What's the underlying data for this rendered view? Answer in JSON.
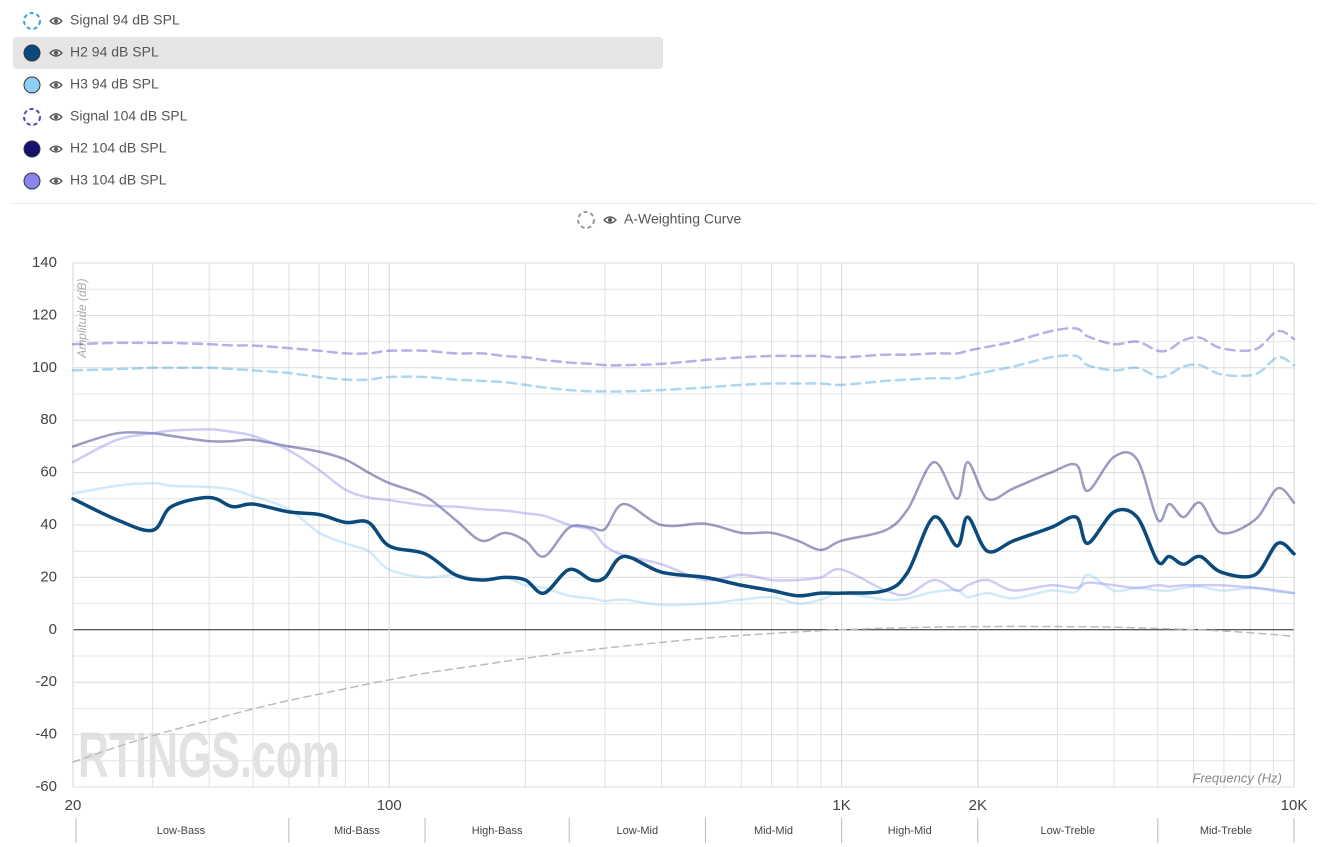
{
  "chart_data": {
    "type": "line",
    "log_x": true,
    "grid": true,
    "xlabel": "Frequency (Hz)",
    "ylabel": "Amplitude (dB)",
    "watermark": "RTINGS.com",
    "xlim": [
      20,
      10000
    ],
    "ylim": [
      -60,
      140
    ],
    "xticks": [
      20,
      100,
      {
        "value": 1000,
        "label": "1K"
      },
      {
        "value": 2000,
        "label": "2K"
      },
      {
        "value": 10000,
        "label": "10K"
      }
    ],
    "xminor": [
      30,
      40,
      50,
      60,
      70,
      80,
      90,
      200,
      300,
      400,
      500,
      600,
      700,
      800,
      900,
      3000,
      4000,
      5000,
      6000,
      7000,
      8000,
      9000
    ],
    "yticks": [
      140,
      120,
      100,
      80,
      60,
      40,
      20,
      0,
      -20,
      -40,
      -60
    ],
    "yminor": [
      130,
      110,
      90,
      70,
      50,
      30,
      10,
      -10,
      -30,
      -50
    ],
    "x": [
      20,
      25,
      30,
      33,
      40,
      45,
      50,
      60,
      70,
      80,
      90,
      100,
      120,
      140,
      160,
      180,
      200,
      220,
      250,
      280,
      300,
      330,
      400,
      500,
      600,
      700,
      800,
      900,
      1000,
      1250,
      1400,
      1600,
      1800,
      1900,
      2100,
      2400,
      2900,
      3300,
      3500,
      4000,
      4500,
      5000,
      5300,
      5700,
      6200,
      6900,
      8200,
      9200,
      10000
    ],
    "series": [
      {
        "name": "Signal 94 dB SPL",
        "color": "#3aa0dc",
        "dashed": true,
        "values": [
          99,
          99.5,
          100,
          100,
          100,
          99.5,
          99,
          98,
          96.5,
          95.5,
          95.5,
          96.5,
          96.5,
          95.5,
          95,
          94.5,
          93.5,
          92.5,
          91.5,
          91,
          91,
          91,
          91.5,
          92.5,
          93.5,
          94,
          94,
          94,
          93.5,
          95,
          95.5,
          96,
          96,
          97,
          98.5,
          100.5,
          104,
          104.5,
          101,
          99,
          100,
          96.5,
          97.5,
          100.5,
          101,
          97.5,
          97.5,
          104,
          101
        ]
      },
      {
        "name": "H2 94 dB SPL",
        "color": "#0b4a7b",
        "highlight": true,
        "values": [
          50,
          42,
          38,
          47,
          50.5,
          47,
          48,
          45,
          44,
          41,
          41,
          32,
          29,
          21,
          19,
          20,
          19,
          14,
          23,
          19,
          20,
          28,
          22,
          20,
          17,
          15,
          13,
          14,
          14,
          15,
          22,
          43,
          32,
          43,
          30,
          34,
          39,
          43,
          33,
          45,
          43,
          26,
          28,
          25,
          28,
          22,
          21,
          33,
          29
        ]
      },
      {
        "name": "H3 94 dB SPL",
        "color": "#8fcdf2",
        "values": [
          52,
          55,
          56,
          55,
          54.5,
          53.5,
          51,
          46,
          37,
          33,
          30,
          23,
          20,
          21,
          19,
          20,
          17,
          16,
          13,
          12,
          11,
          11.5,
          9.5,
          10,
          11.5,
          12.5,
          10,
          11.5,
          14,
          11.5,
          12,
          14.5,
          15,
          12.5,
          14,
          12,
          15,
          14.5,
          21,
          15,
          16,
          15,
          15,
          16,
          16.5,
          15,
          16,
          14.5,
          14
        ]
      },
      {
        "name": "Signal 104 dB SPL",
        "color": "#4b46c8",
        "dashed": true,
        "values": [
          109,
          109.5,
          109.5,
          109.5,
          109,
          108.5,
          108.5,
          107.5,
          106.5,
          105.5,
          105.5,
          106.5,
          106.5,
          105.5,
          105.5,
          104.5,
          104,
          103,
          102,
          101.5,
          101,
          101,
          101.5,
          103,
          104,
          104.5,
          104.5,
          104.5,
          104,
          105,
          105,
          105.5,
          105.5,
          106.5,
          108,
          110,
          114,
          115,
          112,
          109,
          110,
          106.5,
          107,
          110.5,
          111.5,
          107.5,
          107,
          114,
          111
        ]
      },
      {
        "name": "H2 104 dB SPL",
        "color": "#14126e",
        "values": [
          70,
          75,
          75,
          74,
          72,
          72,
          72.5,
          70,
          68,
          65,
          60,
          56,
          51,
          42,
          34,
          37,
          34,
          28,
          39,
          39,
          38.5,
          48,
          40,
          40.5,
          37,
          37,
          34,
          30.5,
          34,
          38,
          46,
          64,
          50,
          64,
          50,
          54,
          60,
          63,
          53,
          66,
          65,
          42,
          48,
          43,
          48.5,
          37,
          42,
          54,
          48.5
        ]
      },
      {
        "name": "H3 104 dB SPL",
        "color": "#8a86ec",
        "values": [
          64,
          72.5,
          75,
          76,
          76.5,
          75.5,
          74,
          68.5,
          61,
          53.5,
          50.5,
          49.5,
          47.5,
          47,
          46,
          45.5,
          44.5,
          43.5,
          40,
          38,
          32,
          28.5,
          25,
          19,
          21,
          19,
          19,
          20,
          23,
          15,
          13.5,
          19,
          15,
          17,
          19,
          15,
          17,
          16,
          18,
          17,
          16,
          17,
          16.5,
          17,
          17,
          17,
          16,
          15,
          14
        ]
      }
    ],
    "reference_curve": {
      "name": "A-Weighting Curve",
      "color": "#bbbbbb",
      "dashed": true,
      "x": [
        20,
        25,
        31.5,
        40,
        50,
        63,
        80,
        100,
        125,
        160,
        200,
        250,
        315,
        400,
        500,
        630,
        800,
        1000,
        1250,
        1600,
        2000,
        2500,
        3150,
        4000,
        5000,
        6300,
        8000,
        10000
      ],
      "values": [
        -50.5,
        -44.7,
        -39.4,
        -34.6,
        -30.2,
        -26.2,
        -22.5,
        -19.1,
        -16.1,
        -13.4,
        -10.9,
        -8.6,
        -6.6,
        -4.8,
        -3.2,
        -1.9,
        -0.8,
        0,
        0.6,
        1,
        1.2,
        1.3,
        1.2,
        1,
        0.5,
        -0.1,
        -1.1,
        -2.5
      ]
    },
    "bands": [
      {
        "label": "Low-Bass",
        "from": 20,
        "to": 60
      },
      {
        "label": "Mid-Bass",
        "from": 60,
        "to": 120
      },
      {
        "label": "High-Bass",
        "from": 120,
        "to": 250
      },
      {
        "label": "Low-Mid",
        "from": 250,
        "to": 500
      },
      {
        "label": "Mid-Mid",
        "from": 500,
        "to": 1000
      },
      {
        "label": "High-Mid",
        "from": 1000,
        "to": 2000
      },
      {
        "label": "Low-Treble",
        "from": 2000,
        "to": 5000
      },
      {
        "label": "Mid-Treble",
        "from": 5000,
        "to": 10000
      }
    ]
  }
}
